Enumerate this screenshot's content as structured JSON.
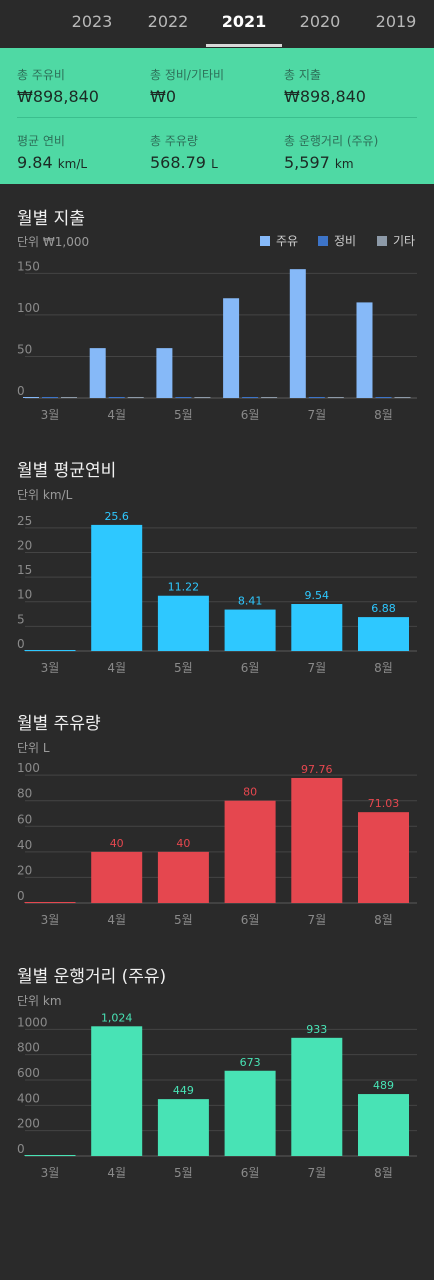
{
  "year_tabs": [
    "2023",
    "2022",
    "2021",
    "2020",
    "2019"
  ],
  "active_year": "2021",
  "summary": {
    "total_fuel_cost": {
      "label": "총 주유비",
      "value": "₩898,840"
    },
    "total_maintenance_cost": {
      "label": "총 정비/기타비",
      "value": "₩0"
    },
    "total_expense": {
      "label": "총 지출",
      "value": "₩898,840"
    },
    "avg_efficiency": {
      "label": "평균 연비",
      "value": "9.84",
      "unit": "km/L"
    },
    "total_fuel_volume": {
      "label": "총 주유량",
      "value": "568.79",
      "unit": "L"
    },
    "total_distance": {
      "label": "총 운행거리 (주유)",
      "value": "5,597",
      "unit": "km"
    }
  },
  "sections": {
    "expense": {
      "title": "월별 지출",
      "unit": "단위 ₩1,000"
    },
    "efficiency": {
      "title": "월별 평균연비",
      "unit": "단위 km/L"
    },
    "fuel": {
      "title": "월별 주유량",
      "unit": "단위 L"
    },
    "distance": {
      "title": "월별 운행거리 (주유)",
      "unit": "단위 km"
    }
  },
  "legend": [
    {
      "label": "주유",
      "color": "#86b9f8"
    },
    {
      "label": "정비",
      "color": "#3d74c8"
    },
    {
      "label": "기타",
      "color": "#8d9aa8"
    }
  ],
  "chart_data": [
    {
      "type": "bar",
      "title": "월별 지출",
      "categories": [
        "3월",
        "4월",
        "5월",
        "6월",
        "7월",
        "8월"
      ],
      "series": [
        {
          "name": "주유",
          "values": [
            0,
            60,
            60,
            120,
            155,
            115
          ],
          "color": "#86b9f8"
        },
        {
          "name": "정비",
          "values": [
            0,
            0,
            0,
            0,
            0,
            0
          ],
          "color": "#3d74c8"
        },
        {
          "name": "기타",
          "values": [
            0,
            0,
            0,
            0,
            0,
            0
          ],
          "color": "#8d9aa8"
        }
      ],
      "ylabel": "단위 ₩1,000",
      "yticks": [
        0,
        50,
        100,
        150
      ],
      "ylim": [
        0,
        160
      ],
      "grid": true,
      "legend_position": "top-right"
    },
    {
      "type": "bar",
      "title": "월별 평균연비",
      "categories": [
        "3월",
        "4월",
        "5월",
        "6월",
        "7월",
        "8월"
      ],
      "values": [
        0,
        25.6,
        11.22,
        8.41,
        9.54,
        6.88
      ],
      "data_labels": [
        "",
        "25.6",
        "11.22",
        "8.41",
        "9.54",
        "6.88"
      ],
      "ylabel": "단위 km/L",
      "yticks": [
        0,
        5,
        10,
        15,
        20,
        25
      ],
      "ylim": [
        0,
        27
      ],
      "color": "#2ec8ff",
      "grid": true
    },
    {
      "type": "bar",
      "title": "월별 주유량",
      "categories": [
        "3월",
        "4월",
        "5월",
        "6월",
        "7월",
        "8월"
      ],
      "values": [
        0,
        40,
        40,
        80,
        97.76,
        71.03
      ],
      "data_labels": [
        "",
        "40",
        "40",
        "80",
        "97.76",
        "71.03"
      ],
      "ylabel": "단위 L",
      "yticks": [
        0,
        20,
        40,
        60,
        80,
        100
      ],
      "ylim": [
        0,
        104
      ],
      "color": "#e5474f",
      "grid": true
    },
    {
      "type": "bar",
      "title": "월별 운행거리 (주유)",
      "categories": [
        "3월",
        "4월",
        "5월",
        "6월",
        "7월",
        "8월"
      ],
      "values": [
        0,
        1024,
        449,
        673,
        933,
        489
      ],
      "data_labels": [
        "",
        "1,024",
        "449",
        "673",
        "933",
        "489"
      ],
      "ylabel": "단위 km",
      "yticks": [
        0,
        200,
        400,
        600,
        800,
        1000
      ],
      "ylim": [
        0,
        1050
      ],
      "color": "#48e3b5",
      "grid": true
    }
  ]
}
